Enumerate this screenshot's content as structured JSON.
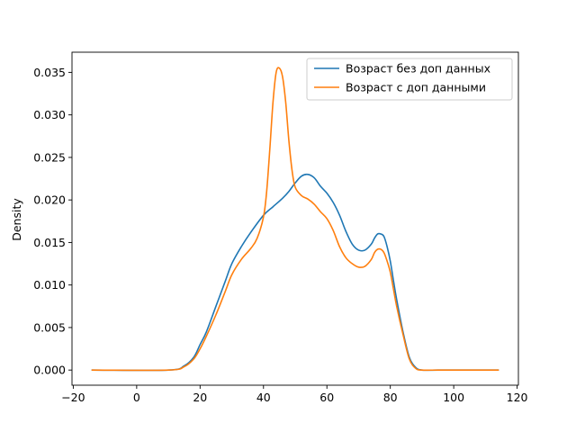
{
  "chart_data": {
    "type": "line",
    "xlabel": "",
    "ylabel": "Density",
    "xlim": [
      -20.4,
      120.4
    ],
    "ylim": [
      -0.00178,
      0.03737
    ],
    "xticks": [
      -20,
      0,
      20,
      40,
      60,
      80,
      100,
      120
    ],
    "xtick_labels": [
      "−20",
      "0",
      "20",
      "40",
      "60",
      "80",
      "100",
      "120"
    ],
    "yticks": [
      0.0,
      0.005,
      0.01,
      0.015,
      0.02,
      0.025,
      0.03,
      0.035
    ],
    "ytick_labels": [
      "0.000",
      "0.005",
      "0.010",
      "0.015",
      "0.020",
      "0.025",
      "0.030",
      "0.035"
    ],
    "grid": false,
    "legend": {
      "placement": "top-right"
    },
    "series": [
      {
        "name": "Возраст без доп данных",
        "color": "#1f77b4",
        "x": [
          -14,
          10,
          15,
          18,
          20,
          22,
          25,
          28,
          30,
          33,
          36,
          40,
          43,
          46,
          48,
          50,
          52,
          54,
          56,
          58,
          60,
          62,
          64,
          66,
          68,
          70,
          72,
          74,
          75,
          76,
          77,
          78,
          79,
          80,
          81,
          82,
          84,
          86,
          88,
          90,
          95,
          100,
          114
        ],
        "y": [
          0.0,
          0.0,
          0.0005,
          0.0015,
          0.003,
          0.0045,
          0.0075,
          0.0105,
          0.0125,
          0.0145,
          0.0162,
          0.0182,
          0.0192,
          0.0202,
          0.021,
          0.022,
          0.0228,
          0.023,
          0.0226,
          0.0216,
          0.0208,
          0.0197,
          0.0182,
          0.0163,
          0.0148,
          0.0141,
          0.0141,
          0.0148,
          0.0155,
          0.016,
          0.016,
          0.0157,
          0.0145,
          0.0128,
          0.0105,
          0.0083,
          0.0045,
          0.0015,
          0.0003,
          0.0,
          0.0,
          0.0,
          0.0
        ]
      },
      {
        "name": "Возраст с доп данными",
        "color": "#ff7f0e",
        "x": [
          -14,
          10,
          15,
          18,
          20,
          22,
          25,
          28,
          30,
          33,
          36,
          38,
          40,
          41,
          42,
          43,
          44,
          45,
          46,
          47,
          48,
          49,
          50,
          52,
          54,
          56,
          58,
          60,
          62,
          64,
          66,
          68,
          70,
          72,
          74,
          75,
          76,
          77,
          78,
          79,
          80,
          81,
          82,
          84,
          86,
          88,
          90,
          95,
          100,
          114
        ],
        "y": [
          0.0,
          0.0,
          0.0004,
          0.0013,
          0.0025,
          0.004,
          0.0065,
          0.0093,
          0.0112,
          0.013,
          0.0143,
          0.0155,
          0.018,
          0.021,
          0.026,
          0.0315,
          0.035,
          0.0355,
          0.0345,
          0.0315,
          0.027,
          0.0235,
          0.0215,
          0.0205,
          0.0201,
          0.0195,
          0.0186,
          0.0178,
          0.0164,
          0.0145,
          0.0132,
          0.0125,
          0.0121,
          0.0122,
          0.013,
          0.0138,
          0.0142,
          0.0142,
          0.0138,
          0.0128,
          0.0115,
          0.0095,
          0.0075,
          0.0042,
          0.0013,
          0.0002,
          0.0,
          0.0,
          0.0,
          0.0
        ]
      }
    ]
  }
}
